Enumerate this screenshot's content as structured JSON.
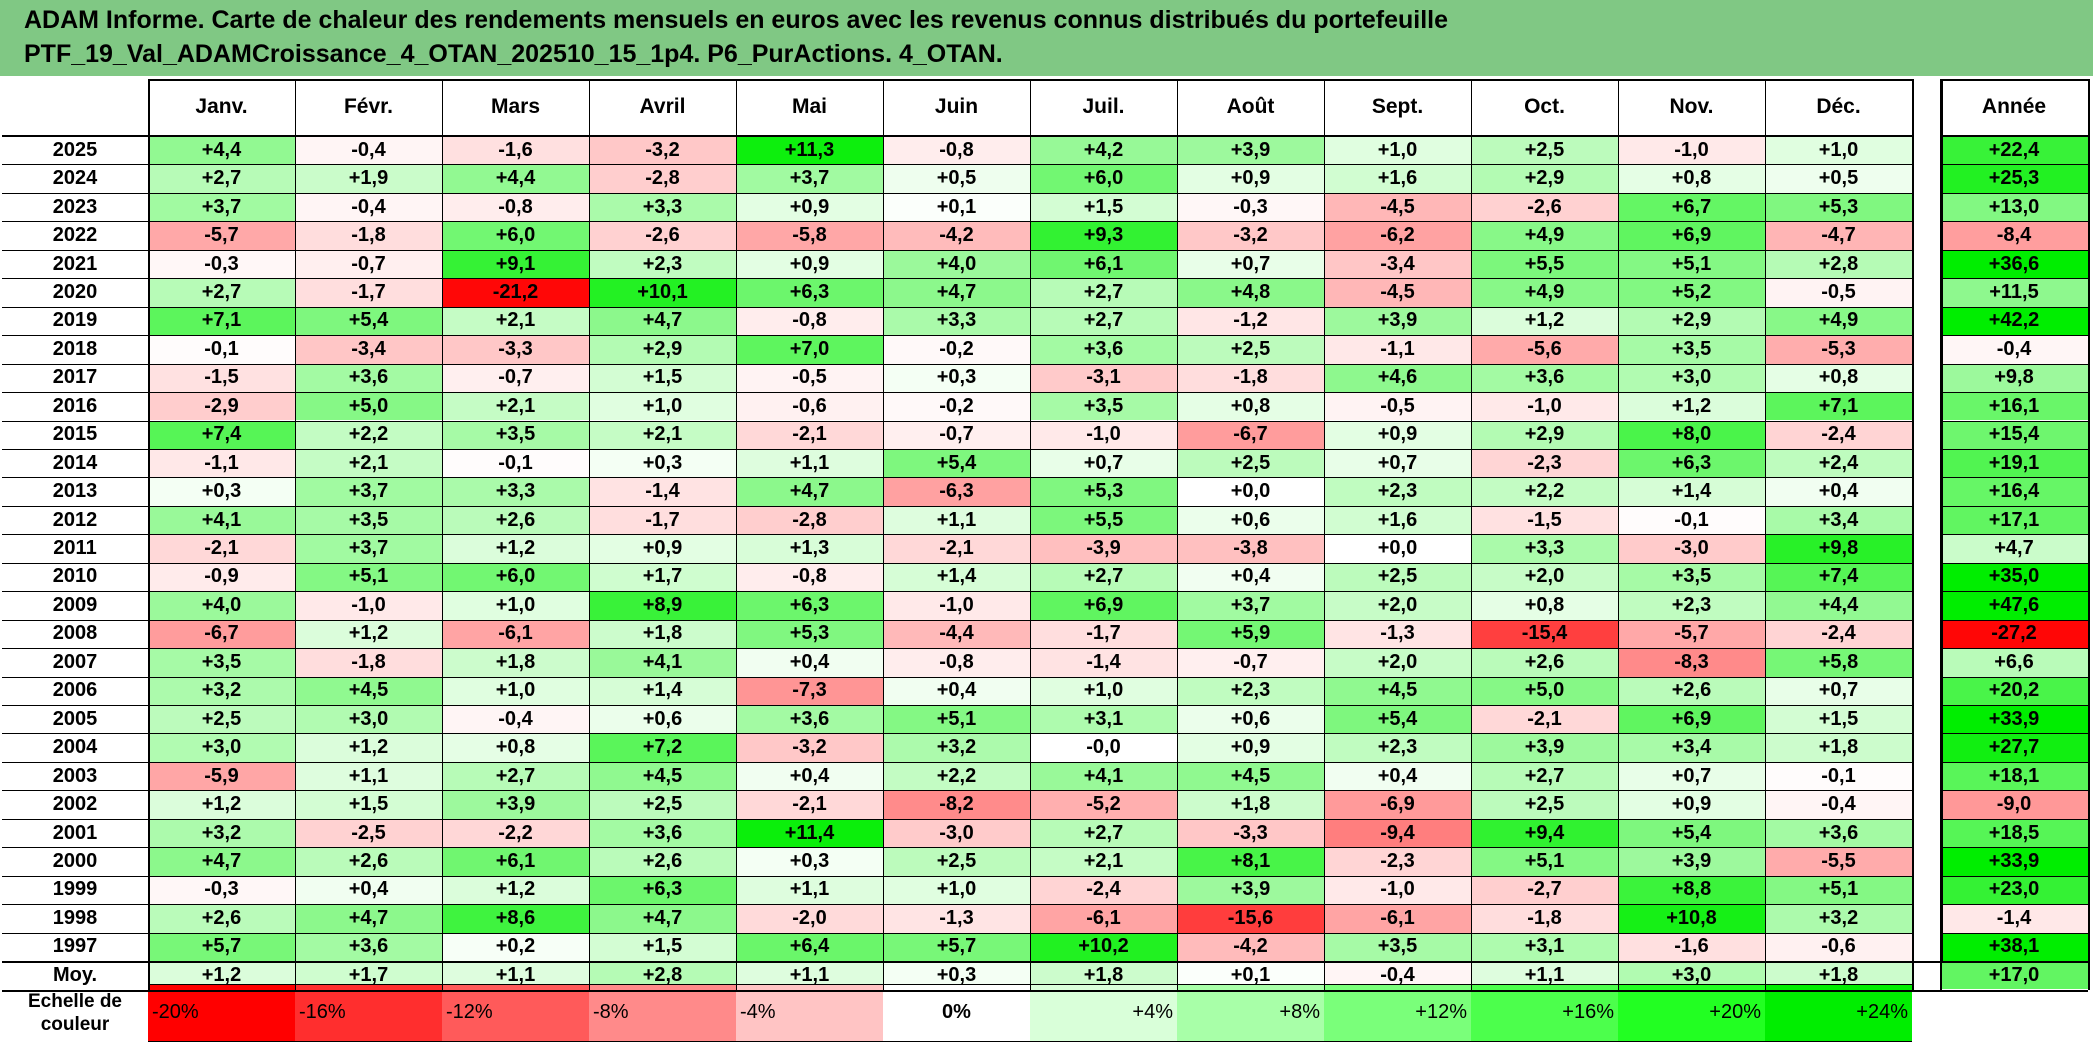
{
  "header": {
    "line1": "ADAM Informe. Carte de chaleur des rendements mensuels en euros avec les revenus connus distribués du portefeuille",
    "line2": "PTF_19_Val_ADAMCroissance_4_OTAN_202510_15_1p4. P6_PurActions. 4_OTAN."
  },
  "chart_data": {
    "type": "heatmap",
    "columns": [
      "Janv.",
      "Févr.",
      "Mars",
      "Avril",
      "Mai",
      "Juin",
      "Juil.",
      "Août",
      "Sept.",
      "Oct.",
      "Nov.",
      "Déc."
    ],
    "annual_label": "Année",
    "rows": [
      {
        "year": "2025",
        "months": [
          "+4,4",
          "-0,4",
          "-1,6",
          "-3,2",
          "+11,3",
          "-0,8",
          "+4,2",
          "+3,9",
          "+1,0",
          "+2,5",
          "-1,0",
          "+1,0"
        ],
        "annual": "+22,4"
      },
      {
        "year": "2024",
        "months": [
          "+2,7",
          "+1,9",
          "+4,4",
          "-2,8",
          "+3,7",
          "+0,5",
          "+6,0",
          "+0,9",
          "+1,6",
          "+2,9",
          "+0,8",
          "+0,5"
        ],
        "annual": "+25,3"
      },
      {
        "year": "2023",
        "months": [
          "+3,7",
          "-0,4",
          "-0,8",
          "+3,3",
          "+0,9",
          "+0,1",
          "+1,5",
          "-0,3",
          "-4,5",
          "-2,6",
          "+6,7",
          "+5,3"
        ],
        "annual": "+13,0"
      },
      {
        "year": "2022",
        "months": [
          "-5,7",
          "-1,8",
          "+6,0",
          "-2,6",
          "-5,8",
          "-4,2",
          "+9,3",
          "-3,2",
          "-6,2",
          "+4,9",
          "+6,9",
          "-4,7"
        ],
        "annual": "-8,4"
      },
      {
        "year": "2021",
        "months": [
          "-0,3",
          "-0,7",
          "+9,1",
          "+2,3",
          "+0,9",
          "+4,0",
          "+6,1",
          "+0,7",
          "-3,4",
          "+5,5",
          "+5,1",
          "+2,8"
        ],
        "annual": "+36,6"
      },
      {
        "year": "2020",
        "months": [
          "+2,7",
          "-1,7",
          "-21,2",
          "+10,1",
          "+6,3",
          "+4,7",
          "+2,7",
          "+4,8",
          "-4,5",
          "+4,9",
          "+5,2",
          "-0,5"
        ],
        "annual": "+11,5"
      },
      {
        "year": "2019",
        "months": [
          "+7,1",
          "+5,4",
          "+2,1",
          "+4,7",
          "-0,8",
          "+3,3",
          "+2,7",
          "-1,2",
          "+3,9",
          "+1,2",
          "+2,9",
          "+4,9"
        ],
        "annual": "+42,2"
      },
      {
        "year": "2018",
        "months": [
          "-0,1",
          "-3,4",
          "-3,3",
          "+2,9",
          "+7,0",
          "-0,2",
          "+3,6",
          "+2,5",
          "-1,1",
          "-5,6",
          "+3,5",
          "-5,3"
        ],
        "annual": "-0,4"
      },
      {
        "year": "2017",
        "months": [
          "-1,5",
          "+3,6",
          "-0,7",
          "+1,5",
          "-0,5",
          "+0,3",
          "-3,1",
          "-1,8",
          "+4,6",
          "+3,6",
          "+3,0",
          "+0,8"
        ],
        "annual": "+9,8"
      },
      {
        "year": "2016",
        "months": [
          "-2,9",
          "+5,0",
          "+2,1",
          "+1,0",
          "-0,6",
          "-0,2",
          "+3,5",
          "+0,8",
          "-0,5",
          "-1,0",
          "+1,2",
          "+7,1"
        ],
        "annual": "+16,1"
      },
      {
        "year": "2015",
        "months": [
          "+7,4",
          "+2,2",
          "+3,5",
          "+2,1",
          "-2,1",
          "-0,7",
          "-1,0",
          "-6,7",
          "+0,9",
          "+2,9",
          "+8,0",
          "-2,4"
        ],
        "annual": "+15,4"
      },
      {
        "year": "2014",
        "months": [
          "-1,1",
          "+2,1",
          "-0,1",
          "+0,3",
          "+1,1",
          "+5,4",
          "+0,7",
          "+2,5",
          "+0,7",
          "-2,3",
          "+6,3",
          "+2,4"
        ],
        "annual": "+19,1"
      },
      {
        "year": "2013",
        "months": [
          "+0,3",
          "+3,7",
          "+3,3",
          "-1,4",
          "+4,7",
          "-6,3",
          "+5,3",
          "+0,0",
          "+2,3",
          "+2,2",
          "+1,4",
          "+0,4"
        ],
        "annual": "+16,4"
      },
      {
        "year": "2012",
        "months": [
          "+4,1",
          "+3,5",
          "+2,6",
          "-1,7",
          "-2,8",
          "+1,1",
          "+5,5",
          "+0,6",
          "+1,6",
          "-1,5",
          "-0,1",
          "+3,4"
        ],
        "annual": "+17,1"
      },
      {
        "year": "2011",
        "months": [
          "-2,1",
          "+3,7",
          "+1,2",
          "+0,9",
          "+1,3",
          "-2,1",
          "-3,9",
          "-3,8",
          "+0,0",
          "+3,3",
          "-3,0",
          "+9,8"
        ],
        "annual": "+4,7"
      },
      {
        "year": "2010",
        "months": [
          "-0,9",
          "+5,1",
          "+6,0",
          "+1,7",
          "-0,8",
          "+1,4",
          "+2,7",
          "+0,4",
          "+2,5",
          "+2,0",
          "+3,5",
          "+7,4"
        ],
        "annual": "+35,0"
      },
      {
        "year": "2009",
        "months": [
          "+4,0",
          "-1,0",
          "+1,0",
          "+8,9",
          "+6,3",
          "-1,0",
          "+6,9",
          "+3,7",
          "+2,0",
          "+0,8",
          "+2,3",
          "+4,4"
        ],
        "annual": "+47,6"
      },
      {
        "year": "2008",
        "months": [
          "-6,7",
          "+1,2",
          "-6,1",
          "+1,8",
          "+5,3",
          "-4,4",
          "-1,7",
          "+5,9",
          "-1,3",
          "-15,4",
          "-5,7",
          "-2,4"
        ],
        "annual": "-27,2"
      },
      {
        "year": "2007",
        "months": [
          "+3,5",
          "-1,8",
          "+1,8",
          "+4,1",
          "+0,4",
          "-0,8",
          "-1,4",
          "-0,7",
          "+2,0",
          "+2,6",
          "-8,3",
          "+5,8"
        ],
        "annual": "+6,6"
      },
      {
        "year": "2006",
        "months": [
          "+3,2",
          "+4,5",
          "+1,0",
          "+1,4",
          "-7,3",
          "+0,4",
          "+1,0",
          "+2,3",
          "+4,5",
          "+5,0",
          "+2,6",
          "+0,7"
        ],
        "annual": "+20,2"
      },
      {
        "year": "2005",
        "months": [
          "+2,5",
          "+3,0",
          "-0,4",
          "+0,6",
          "+3,6",
          "+5,1",
          "+3,1",
          "+0,6",
          "+5,4",
          "-2,1",
          "+6,9",
          "+1,5"
        ],
        "annual": "+33,9"
      },
      {
        "year": "2004",
        "months": [
          "+3,0",
          "+1,2",
          "+0,8",
          "+7,2",
          "-3,2",
          "+3,2",
          "-0,0",
          "+0,9",
          "+2,3",
          "+3,9",
          "+3,4",
          "+1,8"
        ],
        "annual": "+27,7"
      },
      {
        "year": "2003",
        "months": [
          "-5,9",
          "+1,1",
          "+2,7",
          "+4,5",
          "+0,4",
          "+2,2",
          "+4,1",
          "+4,5",
          "+0,4",
          "+2,7",
          "+0,7",
          "-0,1"
        ],
        "annual": "+18,1"
      },
      {
        "year": "2002",
        "months": [
          "+1,2",
          "+1,5",
          "+3,9",
          "+2,5",
          "-2,1",
          "-8,2",
          "-5,2",
          "+1,8",
          "-6,9",
          "+2,5",
          "+0,9",
          "-0,4"
        ],
        "annual": "-9,0"
      },
      {
        "year": "2001",
        "months": [
          "+3,2",
          "-2,5",
          "-2,2",
          "+3,6",
          "+11,4",
          "-3,0",
          "+2,7",
          "-3,3",
          "-9,4",
          "+9,4",
          "+5,4",
          "+3,6"
        ],
        "annual": "+18,5"
      },
      {
        "year": "2000",
        "months": [
          "+4,7",
          "+2,6",
          "+6,1",
          "+2,6",
          "+0,3",
          "+2,5",
          "+2,1",
          "+8,1",
          "-2,3",
          "+5,1",
          "+3,9",
          "-5,5"
        ],
        "annual": "+33,9"
      },
      {
        "year": "1999",
        "months": [
          "-0,3",
          "+0,4",
          "+1,2",
          "+6,3",
          "+1,1",
          "+1,0",
          "-2,4",
          "+3,9",
          "-1,0",
          "-2,7",
          "+8,8",
          "+5,1"
        ],
        "annual": "+23,0"
      },
      {
        "year": "1998",
        "months": [
          "+2,6",
          "+4,7",
          "+8,6",
          "+4,7",
          "-2,0",
          "-1,3",
          "-6,1",
          "-15,6",
          "-6,1",
          "-1,8",
          "+10,8",
          "+3,2"
        ],
        "annual": "-1,4"
      },
      {
        "year": "1997",
        "months": [
          "+5,7",
          "+3,6",
          "+0,2",
          "+1,5",
          "+6,4",
          "+5,7",
          "+10,2",
          "-4,2",
          "+3,5",
          "+3,1",
          "-1,6",
          "-0,6"
        ],
        "annual": "+38,1"
      }
    ],
    "average": {
      "label": "Moy.",
      "months": [
        "+1,2",
        "+1,7",
        "+1,1",
        "+2,8",
        "+1,1",
        "+0,3",
        "+1,8",
        "+0,1",
        "-0,4",
        "+1,1",
        "+3,0",
        "+1,8"
      ],
      "annual": "+17,0"
    },
    "color_scale": {
      "label_line1": "Echelle de",
      "label_line2": "couleur",
      "steps": [
        "-20%",
        "-16%",
        "-12%",
        "-8%",
        "-4%",
        "0%",
        "+4%",
        "+8%",
        "+12%",
        "+16%",
        "+20%",
        "+24%"
      ],
      "colors": [
        "#ff0000",
        "#ff2e2e",
        "#ff5a5a",
        "#ff8a8a",
        "#ffc4c4",
        "#ffffff",
        "#d9ffd9",
        "#a8ffa8",
        "#7aff7a",
        "#4cff4c",
        "#22ff22",
        "#00ee00"
      ]
    }
  }
}
